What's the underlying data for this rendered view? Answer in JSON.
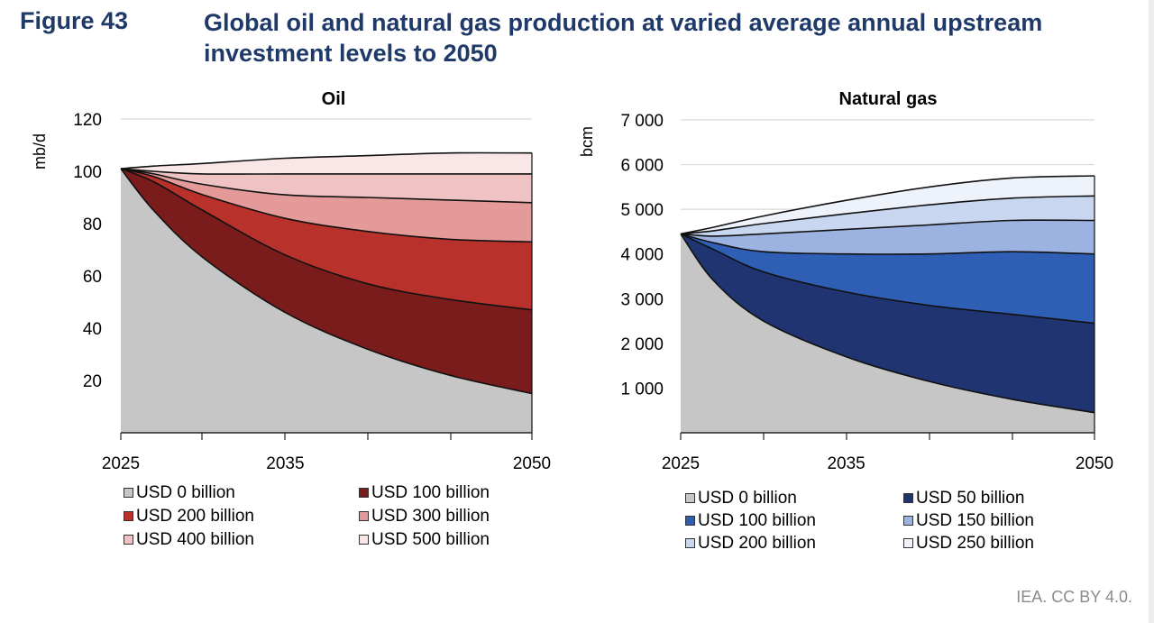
{
  "header": {
    "figure_label": "Figure 43",
    "title": "Global oil and natural gas production at varied average annual upstream investment levels to 2050"
  },
  "chart_data": [
    {
      "id": "oil",
      "type": "area",
      "title": "Oil",
      "ylabel": "mb/d",
      "xlabel": "",
      "x": [
        2025,
        2027,
        2030,
        2035,
        2040,
        2045,
        2050
      ],
      "xticks": [
        "2025",
        "2035",
        "2050"
      ],
      "xlim": [
        2025,
        2050
      ],
      "ylim": [
        0,
        120
      ],
      "yticks": [
        "20",
        "40",
        "60",
        "80",
        "100",
        "120"
      ],
      "grid": true,
      "series": [
        {
          "name": "USD 0 billion",
          "color": "#c6c6c6",
          "values": [
            101,
            85,
            67,
            46,
            32,
            22,
            15
          ]
        },
        {
          "name": "USD 100 billion",
          "color": "#7a1c1c",
          "values": [
            101,
            96,
            85,
            68,
            57,
            51,
            47
          ]
        },
        {
          "name": "USD 200 billion",
          "color": "#b8312a",
          "values": [
            101,
            98,
            91,
            82,
            77,
            74,
            73
          ]
        },
        {
          "name": "USD 300 billion",
          "color": "#e39a98",
          "values": [
            101,
            99,
            95,
            91,
            90,
            89,
            88
          ]
        },
        {
          "name": "USD 400 billion",
          "color": "#efc3c3",
          "values": [
            101,
            100,
            99,
            99,
            99,
            99,
            99
          ]
        },
        {
          "name": "USD 500 billion",
          "color": "#f9e6e6",
          "values": [
            101,
            102,
            103,
            105,
            106,
            107,
            107
          ]
        }
      ]
    },
    {
      "id": "gas",
      "type": "area",
      "title": "Natural gas",
      "ylabel": "bcm",
      "xlabel": "",
      "x": [
        2025,
        2027,
        2030,
        2035,
        2040,
        2045,
        2050
      ],
      "xticks": [
        "2025",
        "2035",
        "2050"
      ],
      "xlim": [
        2025,
        2050
      ],
      "ylim": [
        0,
        7000
      ],
      "yticks": [
        "1 000",
        "2 000",
        "3 000",
        "4 000",
        "5 000",
        "6 000",
        "7 000"
      ],
      "grid": true,
      "series": [
        {
          "name": "USD 0 billion",
          "color": "#c6c6c6",
          "values": [
            4450,
            3400,
            2500,
            1700,
            1150,
            750,
            450
          ]
        },
        {
          "name": "USD 50 billion",
          "color": "#1f3470",
          "values": [
            4450,
            4100,
            3600,
            3150,
            2850,
            2650,
            2450
          ]
        },
        {
          "name": "USD 100 billion",
          "color": "#2e5fb5",
          "values": [
            4450,
            4250,
            4050,
            4000,
            4000,
            4050,
            4000
          ]
        },
        {
          "name": "USD 150 billion",
          "color": "#9cb3e2",
          "values": [
            4450,
            4400,
            4450,
            4550,
            4650,
            4750,
            4750
          ]
        },
        {
          "name": "USD 200 billion",
          "color": "#c8d6f0",
          "values": [
            4450,
            4520,
            4680,
            4900,
            5100,
            5250,
            5300
          ]
        },
        {
          "name": "USD 250 billion",
          "color": "#eef2fa",
          "values": [
            4450,
            4600,
            4850,
            5200,
            5500,
            5700,
            5750
          ]
        }
      ]
    }
  ],
  "footer": {
    "credit": "IEA. CC BY 4.0."
  }
}
